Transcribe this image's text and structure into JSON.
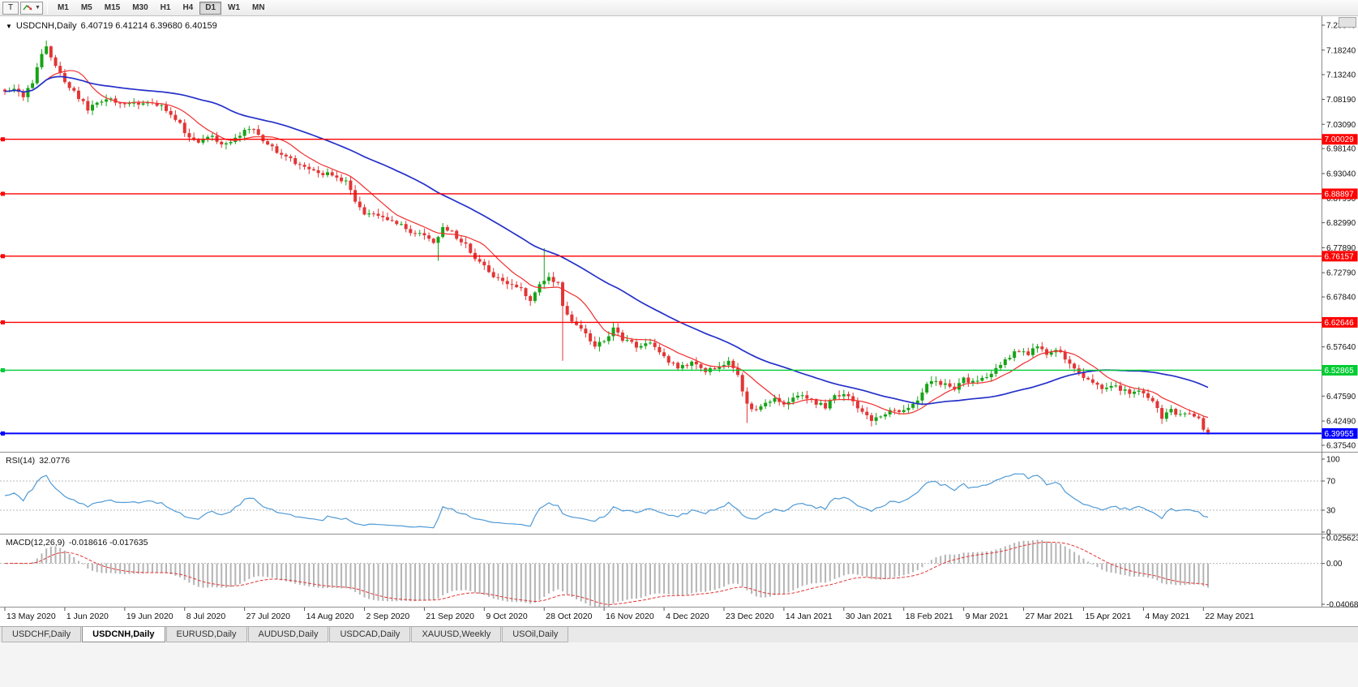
{
  "toolbar": {
    "tool_button": "T",
    "timeframes": [
      "M1",
      "M5",
      "M15",
      "M30",
      "H1",
      "H4",
      "D1",
      "W1",
      "MN"
    ],
    "active_timeframe": "D1"
  },
  "chart_header": {
    "symbol_title": "USDCNH,Daily",
    "ohlc_text": "6.40719 6.41214 6.39680 6.40159"
  },
  "price_axis_ticks": [
    "7.23340",
    "7.18240",
    "7.13240",
    "7.08190",
    "7.03090",
    "6.98140",
    "6.93040",
    "6.87990",
    "6.82990",
    "6.77890",
    "6.72790",
    "6.67840",
    "6.62740",
    "6.57640",
    "6.52590",
    "6.47590",
    "6.42490",
    "6.37540"
  ],
  "levels": [
    {
      "label": "7.00029",
      "value": 7.00029,
      "color": "#ff0000",
      "width": 1.4
    },
    {
      "label": "6.88897",
      "value": 6.88897,
      "color": "#ff0000",
      "width": 1.4
    },
    {
      "label": "6.76157",
      "value": 6.76157,
      "color": "#ff0000",
      "width": 1.4
    },
    {
      "label": "6.62646",
      "value": 6.62646,
      "color": "#ff0000",
      "width": 1.4
    },
    {
      "label": "6.52865",
      "value": 6.52865,
      "color": "#00cc33",
      "width": 1.4
    },
    {
      "label": "6.39955",
      "value": 6.39955,
      "color": "#0000ff",
      "width": 2
    }
  ],
  "date_axis": [
    "13 May 2020",
    "1 Jun 2020",
    "19 Jun 2020",
    "8 Jul 2020",
    "27 Jul 2020",
    "14 Aug 2020",
    "2 Sep 2020",
    "21 Sep 2020",
    "9 Oct 2020",
    "28 Oct 2020",
    "16 Nov 2020",
    "4 Dec 2020",
    "23 Dec 2020",
    "14 Jan 2021",
    "30 Jan 2021",
    "18 Feb 2021",
    "9 Mar 2021",
    "27 Mar 2021",
    "15 Apr 2021",
    "4 May 2021",
    "22 May 2021"
  ],
  "rsi_panel": {
    "title": "RSI(14)",
    "value": "32.0776",
    "axis_ticks": [
      "100",
      "70",
      "30",
      "0"
    ],
    "upper_level": 70,
    "lower_level": 30
  },
  "macd_panel": {
    "title": "MACD(12,26,9)",
    "values": "-0.018616 -0.017635",
    "axis_ticks": [
      "0.025623",
      "0.00",
      "-0.040687"
    ]
  },
  "bottom_tabs": {
    "items": [
      {
        "label": "USDCHF,Daily",
        "active": false
      },
      {
        "label": "USDCNH,Daily",
        "active": true
      },
      {
        "label": "EURUSD,Daily",
        "active": false
      },
      {
        "label": "AUDUSD,Daily",
        "active": false
      },
      {
        "label": "USDCAD,Daily",
        "active": false
      },
      {
        "label": "XAUUSD,Weekly",
        "active": false
      },
      {
        "label": "USOil,Daily",
        "active": false
      }
    ]
  },
  "colors": {
    "bull": "#17a317",
    "bear": "#e23535",
    "ma_fast": "#f03030",
    "ma_slow": "#2430c8",
    "rsi": "#4f9ad6",
    "macd_hist": "#b4b4b4",
    "macd_signal": "#e23535",
    "axis_text": "#111111",
    "grid_dotted": "#b8b8b8"
  },
  "chart_data": {
    "type": "candlestick",
    "symbol": "USDCNH",
    "timeframe": "Daily",
    "title": "USDCNH,Daily",
    "y_range": [
      6.3754,
      7.2334
    ],
    "num_candles": 262,
    "candles_per_label": 13,
    "last_ohlc": {
      "open": 6.40719,
      "high": 6.41214,
      "low": 6.3968,
      "close": 6.40159
    },
    "ma_fast_period": 10,
    "ma_slow_period": 40,
    "rsi_period": 14,
    "rsi_last": 32.0776,
    "macd": {
      "fast": 12,
      "slow": 26,
      "signal": 9,
      "last_macd": -0.018616,
      "last_signal": -0.017635,
      "axis_range": [
        -0.040687,
        0.025623
      ]
    },
    "horizontal_lines": [
      7.00029,
      6.88897,
      6.76157,
      6.62646,
      6.52865,
      6.39955
    ],
    "close_anchors": [
      [
        0,
        7.095
      ],
      [
        2,
        7.105
      ],
      [
        4,
        7.088
      ],
      [
        6,
        7.118
      ],
      [
        8,
        7.172
      ],
      [
        9,
        7.19
      ],
      [
        11,
        7.152
      ],
      [
        13,
        7.118
      ],
      [
        16,
        7.086
      ],
      [
        18,
        7.062
      ],
      [
        20,
        7.076
      ],
      [
        23,
        7.081
      ],
      [
        26,
        7.076
      ],
      [
        29,
        7.068
      ],
      [
        32,
        7.076
      ],
      [
        35,
        7.061
      ],
      [
        38,
        7.032
      ],
      [
        40,
        7.002
      ],
      [
        42,
        6.992
      ],
      [
        45,
        7.006
      ],
      [
        47,
        6.989
      ],
      [
        50,
        7.003
      ],
      [
        53,
        7.022
      ],
      [
        55,
        7.011
      ],
      [
        57,
        6.989
      ],
      [
        60,
        6.969
      ],
      [
        63,
        6.953
      ],
      [
        65,
        6.941
      ],
      [
        68,
        6.931
      ],
      [
        71,
        6.928
      ],
      [
        74,
        6.914
      ],
      [
        76,
        6.876
      ],
      [
        78,
        6.846
      ],
      [
        80,
        6.851
      ],
      [
        83,
        6.834
      ],
      [
        86,
        6.823
      ],
      [
        88,
        6.813
      ],
      [
        91,
        6.801
      ],
      [
        93,
        6.786
      ],
      [
        95,
        6.819
      ],
      [
        97,
        6.809
      ],
      [
        100,
        6.783
      ],
      [
        102,
        6.758
      ],
      [
        104,
        6.744
      ],
      [
        106,
        6.723
      ],
      [
        109,
        6.708
      ],
      [
        112,
        6.693
      ],
      [
        114,
        6.669
      ],
      [
        116,
        6.701
      ],
      [
        118,
        6.718
      ],
      [
        120,
        6.704
      ],
      [
        121,
        6.656
      ],
      [
        123,
        6.626
      ],
      [
        126,
        6.604
      ],
      [
        128,
        6.576
      ],
      [
        130,
        6.589
      ],
      [
        132,
        6.615
      ],
      [
        134,
        6.593
      ],
      [
        137,
        6.577
      ],
      [
        140,
        6.583
      ],
      [
        143,
        6.553
      ],
      [
        146,
        6.533
      ],
      [
        149,
        6.542
      ],
      [
        152,
        6.528
      ],
      [
        155,
        6.533
      ],
      [
        157,
        6.544
      ],
      [
        159,
        6.519
      ],
      [
        161,
        6.456
      ],
      [
        163,
        6.444
      ],
      [
        165,
        6.463
      ],
      [
        167,
        6.473
      ],
      [
        169,
        6.462
      ],
      [
        172,
        6.48
      ],
      [
        175,
        6.467
      ],
      [
        178,
        6.453
      ],
      [
        180,
        6.475
      ],
      [
        182,
        6.482
      ],
      [
        184,
        6.463
      ],
      [
        186,
        6.444
      ],
      [
        188,
        6.428
      ],
      [
        190,
        6.433
      ],
      [
        192,
        6.45
      ],
      [
        194,
        6.442
      ],
      [
        196,
        6.453
      ],
      [
        198,
        6.469
      ],
      [
        200,
        6.498
      ],
      [
        202,
        6.507
      ],
      [
        204,
        6.499
      ],
      [
        206,
        6.493
      ],
      [
        208,
        6.511
      ],
      [
        210,
        6.503
      ],
      [
        212,
        6.512
      ],
      [
        214,
        6.522
      ],
      [
        216,
        6.54
      ],
      [
        218,
        6.557
      ],
      [
        220,
        6.57
      ],
      [
        222,
        6.563
      ],
      [
        224,
        6.577
      ],
      [
        226,
        6.562
      ],
      [
        228,
        6.572
      ],
      [
        230,
        6.552
      ],
      [
        232,
        6.532
      ],
      [
        234,
        6.517
      ],
      [
        236,
        6.502
      ],
      [
        238,
        6.492
      ],
      [
        240,
        6.497
      ],
      [
        242,
        6.49
      ],
      [
        244,
        6.482
      ],
      [
        246,
        6.487
      ],
      [
        248,
        6.472
      ],
      [
        250,
        6.452
      ],
      [
        251,
        6.433
      ],
      [
        253,
        6.447
      ],
      [
        255,
        6.437
      ],
      [
        257,
        6.442
      ],
      [
        259,
        6.432
      ],
      [
        260,
        6.40719
      ],
      [
        261,
        6.40159
      ]
    ],
    "spikes": [
      {
        "i": 9,
        "high": 7.202
      },
      {
        "i": 94,
        "low": 6.752
      },
      {
        "i": 117,
        "high": 6.778
      },
      {
        "i": 121,
        "low": 6.548
      },
      {
        "i": 161,
        "low": 6.421
      },
      {
        "i": 188,
        "low": 6.414
      },
      {
        "i": 251,
        "low": 6.419
      }
    ]
  }
}
